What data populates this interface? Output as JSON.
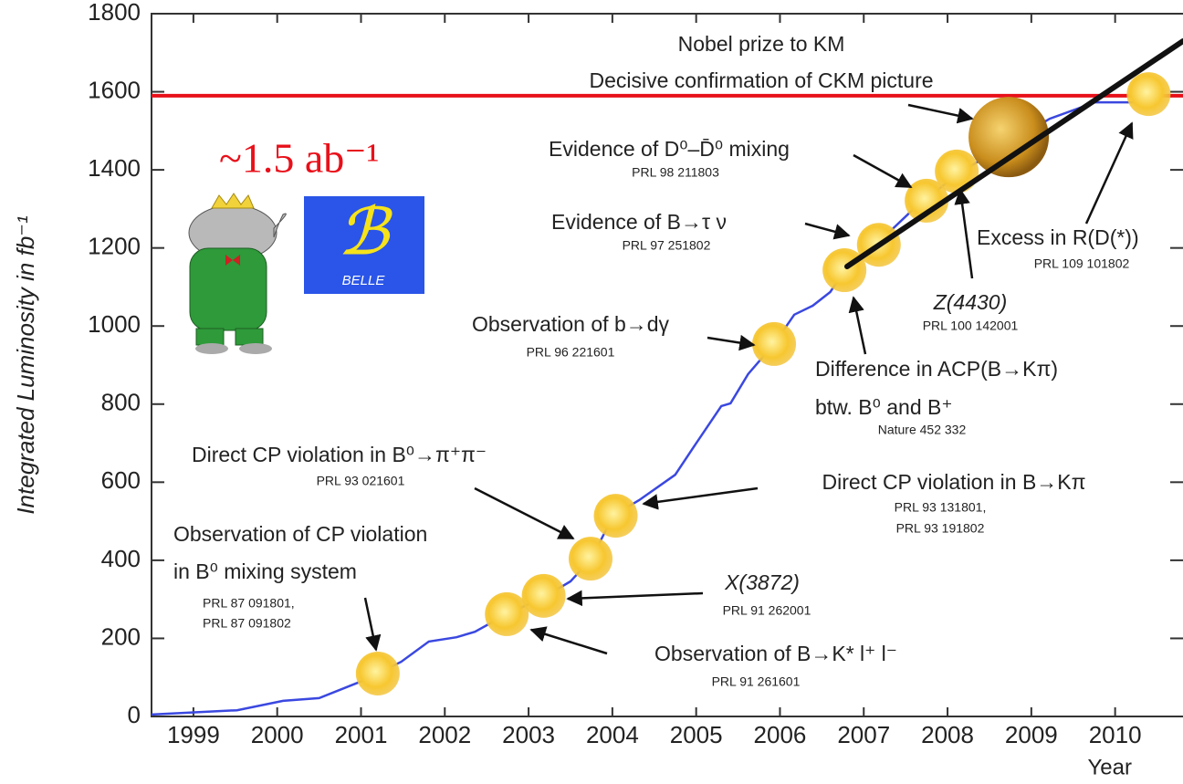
{
  "chart_data": {
    "type": "line",
    "y_label": "Integrated Luminosity in fb⁻¹",
    "x_label": "Year",
    "xlim": [
      1999,
      2011.31
    ],
    "ylim": [
      0,
      1800
    ],
    "yticks": [
      0,
      200,
      400,
      600,
      800,
      1000,
      1200,
      1400,
      1600,
      1800
    ],
    "xticks": [
      {
        "value": 1999.5,
        "label": "1999"
      },
      {
        "value": 2000.5,
        "label": "2000"
      },
      {
        "value": 2001.5,
        "label": "2001"
      },
      {
        "value": 2002.5,
        "label": "2002"
      },
      {
        "value": 2003.5,
        "label": "2003"
      },
      {
        "value": 2004.5,
        "label": "2004"
      },
      {
        "value": 2005.5,
        "label": "2005"
      },
      {
        "value": 2006.5,
        "label": "2006"
      },
      {
        "value": 2007.5,
        "label": "2007"
      },
      {
        "value": 2008.5,
        "label": "2008"
      },
      {
        "value": 2009.5,
        "label": "2009"
      },
      {
        "value": 2010.5,
        "label": "2010"
      }
    ],
    "color": "#3a48e0",
    "x": [
      1999.0,
      2000.02,
      2000.57,
      2001.0,
      2001.55,
      2001.98,
      2002.31,
      2002.64,
      2002.86,
      2003.24,
      2003.67,
      2004.0,
      2004.25,
      2004.51,
      2004.82,
      2005.25,
      2005.47,
      2005.8,
      2005.91,
      2006.12,
      2006.43,
      2006.67,
      2006.89,
      2007.1,
      2007.32,
      2007.65,
      2008.08,
      2008.63,
      2009.17,
      2009.72,
      2010.26,
      2010.81
    ],
    "values": [
      5,
      16,
      40,
      47,
      94,
      140,
      192,
      203,
      217,
      262,
      304,
      346,
      404,
      514,
      554,
      619,
      690,
      795,
      802,
      877,
      954,
      1029,
      1052,
      1087,
      1157,
      1209,
      1297,
      1391,
      1461,
      1531,
      1573,
      1573
    ],
    "hline": 1590,
    "hline_color": "#e8101a",
    "hline_label": "~1.5 ab⁻¹",
    "logo_text": "BELLE",
    "milestones": [
      {
        "x": 2001.7,
        "y": 110,
        "label": [
          "Observation of CP violation",
          "in B⁰ mixing system"
        ],
        "refs": [
          "PRL 87 091801,",
          "PRL 87 091802"
        ]
      },
      {
        "x": 2003.24,
        "y": 262,
        "label": [
          "Observation of B→K* l⁺ l⁻"
        ],
        "refs": [
          "PRL 91 261601"
        ]
      },
      {
        "x": 2003.68,
        "y": 309,
        "label": [
          "X(3872)"
        ],
        "refs": [
          "PRL 91 262001"
        ]
      },
      {
        "x": 2004.24,
        "y": 404,
        "label": [
          "Direct CP violation in B⁰→π⁺π⁻"
        ],
        "refs": [
          "PRL 93 021601"
        ]
      },
      {
        "x": 2004.54,
        "y": 514,
        "label": [
          "Direct CP violation in B→Kπ"
        ],
        "refs": [
          "PRL 93 131801,",
          "PRL 93 191802"
        ]
      },
      {
        "x": 2006.43,
        "y": 954,
        "label": [
          "Observation of b→dγ"
        ],
        "refs": [
          "PRL 96 221601"
        ]
      },
      {
        "x": 2007.27,
        "y": 1143,
        "label": [
          "Difference in ACP(B→Kπ)",
          "btw. B⁰ and B⁺"
        ],
        "refs": [
          "Nature 452 332"
        ]
      },
      {
        "x": 2007.68,
        "y": 1208,
        "label": [
          "Evidence of B→τ ν"
        ],
        "refs": [
          "PRL 97 251802"
        ]
      },
      {
        "x": 2008.25,
        "y": 1321,
        "label": [
          "Evidence of D⁰–D̄⁰ mixing"
        ],
        "refs": [
          "PRL 98 211803"
        ]
      },
      {
        "x": 2008.61,
        "y": 1396,
        "label": [
          "Z(4430)"
        ],
        "refs": [
          "PRL 100 142001"
        ]
      },
      {
        "x": 2009.23,
        "y": 1484,
        "label": [
          "Nobel prize to KM",
          "Decisive confirmation of CKM picture"
        ],
        "refs": []
      },
      {
        "x": 2010.9,
        "y": 1594,
        "label": [
          "Excess in R(D(*))"
        ],
        "refs": [
          "PRL 109 101802"
        ]
      }
    ]
  }
}
